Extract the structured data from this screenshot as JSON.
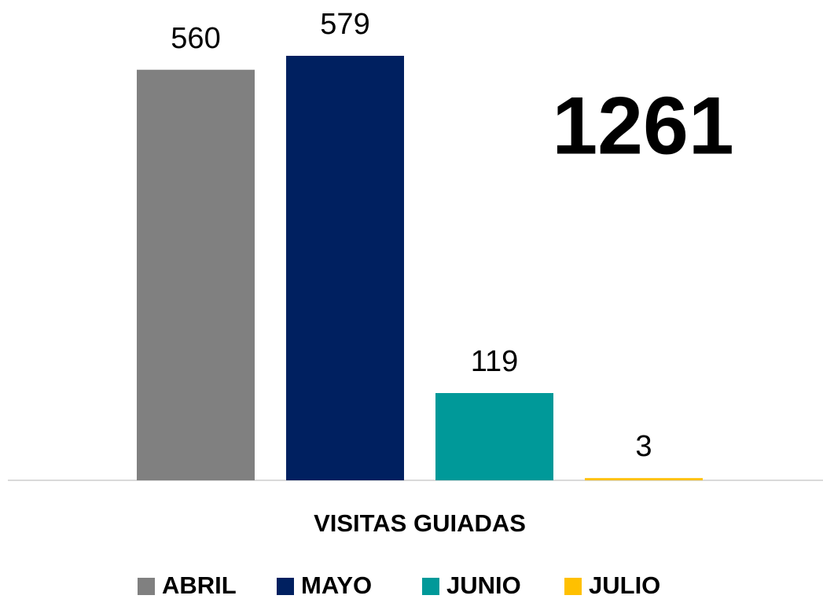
{
  "chart_data": {
    "type": "bar",
    "categories": [
      "VISITAS GUIADAS"
    ],
    "series": [
      {
        "name": "ABRIL",
        "color": "#808080",
        "values": [
          560
        ]
      },
      {
        "name": "MAYO",
        "color": "#002060",
        "values": [
          579
        ]
      },
      {
        "name": "JUNIO",
        "color": "#009999",
        "values": [
          119
        ]
      },
      {
        "name": "JULIO",
        "color": "#ffc000",
        "values": [
          3
        ]
      }
    ],
    "annotations": [
      "1261"
    ],
    "legend": "bottom"
  }
}
